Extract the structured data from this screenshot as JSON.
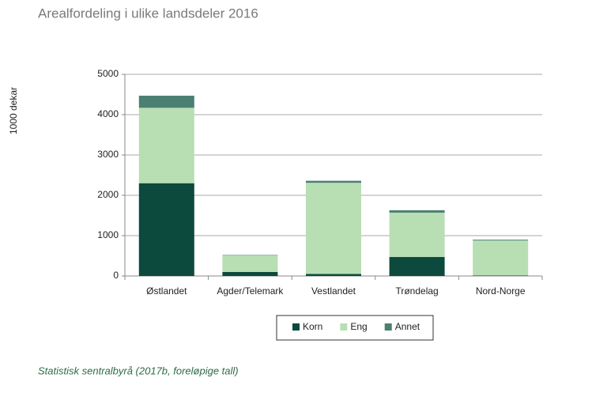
{
  "chart_data": {
    "type": "stacked-bar",
    "title": "Arealfordeling i ulike landsdeler 2016",
    "y_label": "1000 dekar",
    "categories": [
      "Østlandet",
      "Agder/Telemark",
      "Vestlandet",
      "Trøndelag",
      "Nord-Norge"
    ],
    "series": [
      {
        "name": "Korn",
        "color": "#0b4a3c",
        "values": [
          2300,
          100,
          50,
          470,
          10
        ]
      },
      {
        "name": "Eng",
        "color": "#b8deb4",
        "values": [
          1870,
          410,
          2260,
          1100,
          870
        ]
      },
      {
        "name": "Annet",
        "color": "#4a7f72",
        "values": [
          300,
          10,
          50,
          60,
          20
        ]
      }
    ],
    "ylim": [
      0,
      5000
    ],
    "yticks": [
      0,
      1000,
      2000,
      3000,
      4000,
      5000
    ],
    "grid": true,
    "legend": "bottom",
    "source": "Statistisk sentralbyrå (2017b, foreløpige tall)"
  }
}
